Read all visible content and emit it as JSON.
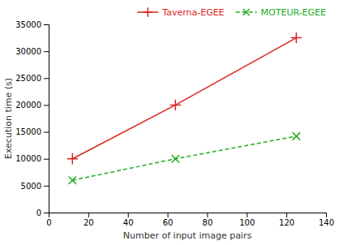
{
  "chart_data": {
    "type": "line",
    "xlabel": "Number of input image pairs",
    "ylabel": "Execution time (s)",
    "x": [
      12,
      64,
      125
    ],
    "series": [
      {
        "name": "Taverna-EGEE",
        "color": "#dd2222",
        "values": [
          10000,
          20000,
          32500
        ],
        "marker": "plus",
        "line_style": "solid"
      },
      {
        "name": "MOTEUR-EGEE",
        "color": "#22aa22",
        "values": [
          6000,
          10000,
          14200
        ],
        "marker": "x",
        "line_style": "dashed"
      }
    ],
    "xlim": [
      0,
      140
    ],
    "ylim": [
      0,
      35000
    ],
    "xticks": [
      0,
      20,
      40,
      60,
      80,
      100,
      120,
      140
    ],
    "yticks": [
      0,
      5000,
      10000,
      15000,
      20000,
      25000,
      30000,
      35000
    ],
    "legend": "upper right",
    "grid": false
  }
}
